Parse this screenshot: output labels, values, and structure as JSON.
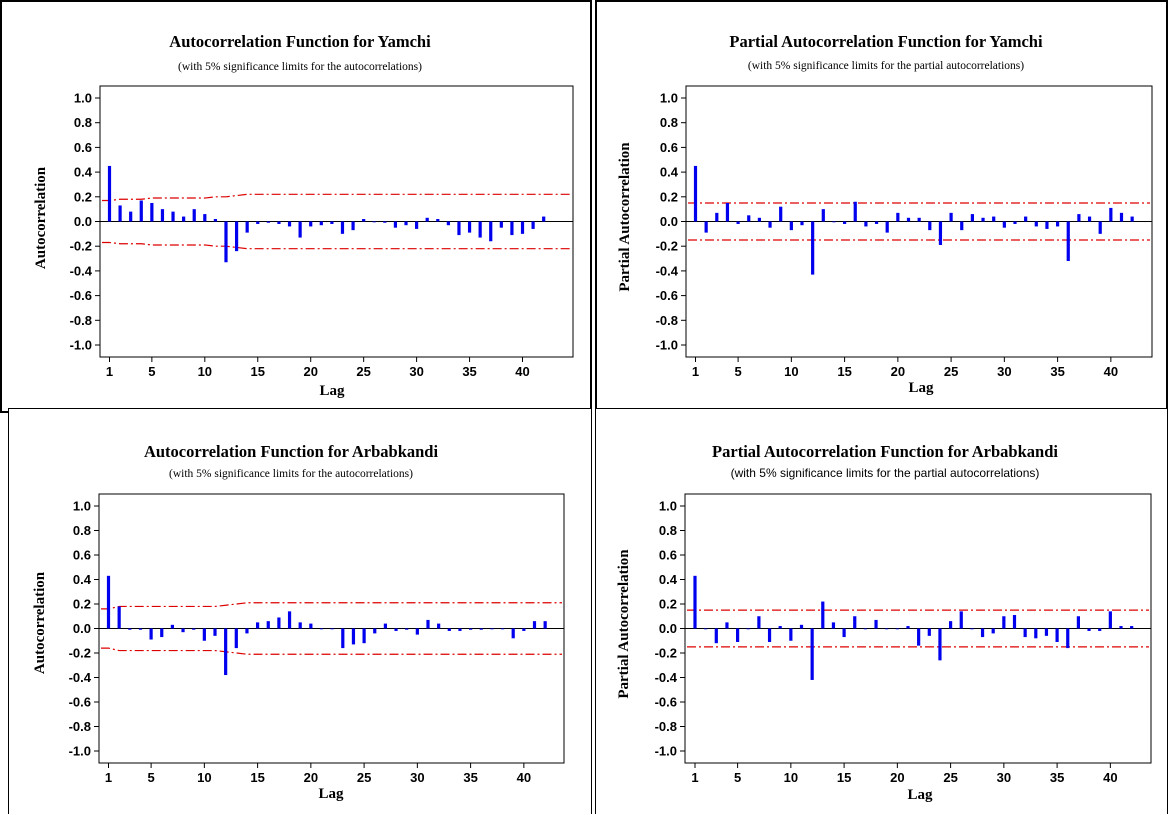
{
  "chart_data": [
    {
      "type": "bar",
      "title": "Autocorrelation Function for Yamchi",
      "subtitle": "(with 5% significance limits for the autocorrelations)",
      "xlabel": "Lag",
      "ylabel": "Autocorrelation",
      "ylim": [
        -1.0,
        1.0
      ],
      "yticks": [
        "1.0",
        "0.8",
        "0.6",
        "0.4",
        "0.2",
        "0.0",
        "-0.2",
        "-0.4",
        "-0.6",
        "-0.8",
        "-1.0"
      ],
      "xticks": [
        "1",
        "5",
        "10",
        "15",
        "20",
        "25",
        "30",
        "35",
        "40"
      ],
      "x": [
        1,
        2,
        3,
        4,
        5,
        6,
        7,
        8,
        9,
        10,
        11,
        12,
        13,
        14,
        15,
        16,
        17,
        18,
        19,
        20,
        21,
        22,
        23,
        24,
        25,
        26,
        27,
        28,
        29,
        30,
        31,
        32,
        33,
        34,
        35,
        36,
        37,
        38,
        39,
        40,
        41,
        42
      ],
      "values": [
        0.45,
        0.13,
        0.08,
        0.17,
        0.15,
        0.1,
        0.08,
        0.04,
        0.1,
        0.06,
        0.02,
        -0.33,
        -0.24,
        -0.09,
        -0.02,
        -0.01,
        -0.02,
        -0.04,
        -0.13,
        -0.04,
        -0.03,
        -0.02,
        -0.1,
        -0.07,
        0.02,
        0.0,
        -0.01,
        -0.05,
        -0.03,
        -0.06,
        0.03,
        0.02,
        -0.03,
        -0.11,
        -0.09,
        -0.13,
        -0.16,
        -0.05,
        -0.11,
        -0.1,
        -0.06,
        0.04
      ],
      "significance_limit": [
        0.17,
        0.18,
        0.18,
        0.18,
        0.19,
        0.19,
        0.19,
        0.19,
        0.19,
        0.19,
        0.2,
        0.2,
        0.21,
        0.22,
        0.22,
        0.22,
        0.22,
        0.22,
        0.22,
        0.22,
        0.22,
        0.22,
        0.22,
        0.22,
        0.22,
        0.22,
        0.22,
        0.22,
        0.22,
        0.22,
        0.22,
        0.22,
        0.22,
        0.22,
        0.22,
        0.22,
        0.22,
        0.22,
        0.22,
        0.22,
        0.22,
        0.22
      ],
      "bar_color": "#0000ee",
      "limit_color": "#dd0000"
    },
    {
      "type": "bar",
      "title": "Partial Autocorrelation Function for Yamchi",
      "subtitle": "(with 5% significance limits for the partial autocorrelations)",
      "xlabel": "Lag",
      "ylabel": "Partial Autocorrelation",
      "ylim": [
        -1.0,
        1.0
      ],
      "yticks": [
        "1.0",
        "0.8",
        "0.6",
        "0.4",
        "0.2",
        "0.0",
        "-0.2",
        "-0.4",
        "-0.6",
        "-0.8",
        "-1.0"
      ],
      "xticks": [
        "1",
        "5",
        "10",
        "15",
        "20",
        "25",
        "30",
        "35",
        "40"
      ],
      "x": [
        1,
        2,
        3,
        4,
        5,
        6,
        7,
        8,
        9,
        10,
        11,
        12,
        13,
        14,
        15,
        16,
        17,
        18,
        19,
        20,
        21,
        22,
        23,
        24,
        25,
        26,
        27,
        28,
        29,
        30,
        31,
        32,
        33,
        34,
        35,
        36,
        37,
        38,
        39,
        40,
        41,
        42
      ],
      "values": [
        0.45,
        -0.09,
        0.07,
        0.15,
        -0.02,
        0.05,
        0.03,
        -0.05,
        0.12,
        -0.07,
        -0.03,
        -0.43,
        0.1,
        0.0,
        -0.02,
        0.16,
        -0.04,
        -0.02,
        -0.09,
        0.07,
        0.03,
        0.03,
        -0.07,
        -0.19,
        0.07,
        -0.07,
        0.06,
        0.03,
        0.04,
        -0.05,
        -0.02,
        0.04,
        -0.04,
        -0.06,
        -0.04,
        -0.32,
        0.06,
        0.04,
        -0.1,
        0.11,
        0.07,
        0.04
      ],
      "significance_limit": [
        0.15,
        0.15,
        0.15,
        0.15,
        0.15,
        0.15,
        0.15,
        0.15,
        0.15,
        0.15,
        0.15,
        0.15,
        0.15,
        0.15,
        0.15,
        0.15,
        0.15,
        0.15,
        0.15,
        0.15,
        0.15,
        0.15,
        0.15,
        0.15,
        0.15,
        0.15,
        0.15,
        0.15,
        0.15,
        0.15,
        0.15,
        0.15,
        0.15,
        0.15,
        0.15,
        0.15,
        0.15,
        0.15,
        0.15,
        0.15,
        0.15,
        0.15
      ],
      "bar_color": "#0000ee",
      "limit_color": "#dd0000"
    },
    {
      "type": "bar",
      "title": "Autocorrelation Function for Arbabkandi",
      "subtitle": "(with 5% significance limits for the autocorrelations)",
      "xlabel": "Lag",
      "ylabel": "Autocorrelation",
      "ylim": [
        -1.0,
        1.0
      ],
      "yticks": [
        "1.0",
        "0.8",
        "0.6",
        "0.4",
        "0.2",
        "0.0",
        "-0.2",
        "-0.4",
        "-0.6",
        "-0.8",
        "-1.0"
      ],
      "xticks": [
        "1",
        "5",
        "10",
        "15",
        "20",
        "25",
        "30",
        "35",
        "40"
      ],
      "x": [
        1,
        2,
        3,
        4,
        5,
        6,
        7,
        8,
        9,
        10,
        11,
        12,
        13,
        14,
        15,
        16,
        17,
        18,
        19,
        20,
        21,
        22,
        23,
        24,
        25,
        26,
        27,
        28,
        29,
        30,
        31,
        32,
        33,
        34,
        35,
        36,
        37,
        38,
        39,
        40,
        41,
        42
      ],
      "values": [
        0.43,
        0.18,
        -0.01,
        -0.01,
        -0.09,
        -0.07,
        0.03,
        -0.03,
        -0.01,
        -0.1,
        -0.06,
        -0.38,
        -0.16,
        -0.04,
        0.05,
        0.06,
        0.09,
        0.14,
        0.05,
        0.04,
        0.0,
        0.0,
        -0.16,
        -0.13,
        -0.12,
        -0.04,
        0.04,
        -0.02,
        -0.01,
        -0.05,
        0.07,
        0.04,
        -0.02,
        -0.02,
        -0.01,
        -0.01,
        0.0,
        0.0,
        -0.08,
        -0.02,
        0.06,
        0.06
      ],
      "significance_limit": [
        0.16,
        0.18,
        0.18,
        0.18,
        0.18,
        0.18,
        0.18,
        0.18,
        0.18,
        0.18,
        0.18,
        0.19,
        0.2,
        0.21,
        0.21,
        0.21,
        0.21,
        0.21,
        0.21,
        0.21,
        0.21,
        0.21,
        0.21,
        0.21,
        0.21,
        0.21,
        0.21,
        0.21,
        0.21,
        0.21,
        0.21,
        0.21,
        0.21,
        0.21,
        0.21,
        0.21,
        0.21,
        0.21,
        0.21,
        0.21,
        0.21,
        0.21
      ],
      "bar_color": "#0000ee",
      "limit_color": "#dd0000"
    },
    {
      "type": "bar",
      "title": "Partial Autocorrelation Function for Arbabkandi",
      "subtitle": "(with 5% significance limits for the partial autocorrelations)",
      "xlabel": "Lag",
      "ylabel": "Partial Autocorrelation",
      "ylim": [
        -1.0,
        1.0
      ],
      "yticks": [
        "1.0",
        "0.8",
        "0.6",
        "0.4",
        "0.2",
        "0.0",
        "-0.2",
        "-0.4",
        "-0.6",
        "-0.8",
        "-1.0"
      ],
      "xticks": [
        "1",
        "5",
        "10",
        "15",
        "20",
        "25",
        "30",
        "35",
        "40"
      ],
      "x": [
        1,
        2,
        3,
        4,
        5,
        6,
        7,
        8,
        9,
        10,
        11,
        12,
        13,
        14,
        15,
        16,
        17,
        18,
        19,
        20,
        21,
        22,
        23,
        24,
        25,
        26,
        27,
        28,
        29,
        30,
        31,
        32,
        33,
        34,
        35,
        36,
        37,
        38,
        39,
        40,
        41,
        42
      ],
      "values": [
        0.43,
        0.0,
        -0.12,
        0.05,
        -0.11,
        0.0,
        0.1,
        -0.11,
        0.02,
        -0.1,
        0.03,
        -0.42,
        0.22,
        0.05,
        -0.07,
        0.1,
        0.0,
        0.07,
        0.0,
        0.0,
        0.02,
        -0.14,
        -0.06,
        -0.26,
        0.06,
        0.14,
        0.0,
        -0.07,
        -0.04,
        0.1,
        0.11,
        -0.07,
        -0.08,
        -0.06,
        -0.11,
        -0.16,
        0.1,
        -0.02,
        -0.02,
        0.14,
        0.02,
        0.02
      ],
      "significance_limit": [
        0.15,
        0.15,
        0.15,
        0.15,
        0.15,
        0.15,
        0.15,
        0.15,
        0.15,
        0.15,
        0.15,
        0.15,
        0.15,
        0.15,
        0.15,
        0.15,
        0.15,
        0.15,
        0.15,
        0.15,
        0.15,
        0.15,
        0.15,
        0.15,
        0.15,
        0.15,
        0.15,
        0.15,
        0.15,
        0.15,
        0.15,
        0.15,
        0.15,
        0.15,
        0.15,
        0.15,
        0.15,
        0.15,
        0.15,
        0.15,
        0.15,
        0.15
      ],
      "bar_color": "#0000ee",
      "limit_color": "#dd0000"
    }
  ]
}
